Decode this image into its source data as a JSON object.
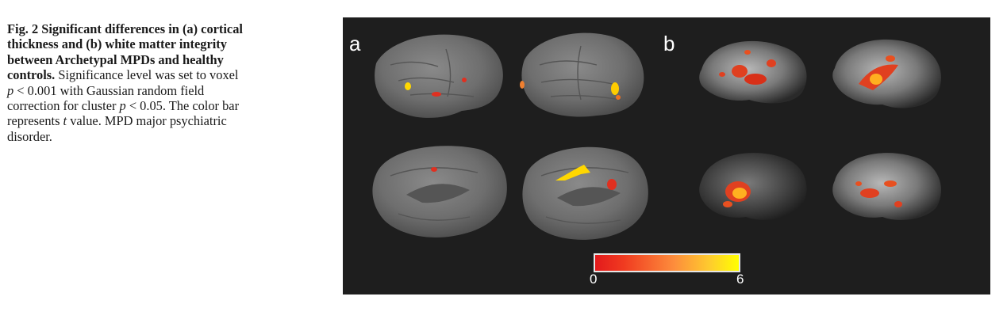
{
  "caption": {
    "bold_text": "Fig. 2 Significant differences in (a) cortical thickness and (b) white matter integrity between Archetypal MPDs and healthy controls.",
    "part1": " Significance level was set to voxel ",
    "p_symbol_1": "p",
    "part2": " < 0.001 with Gaussian random field correction for cluster ",
    "p_symbol_2": "p",
    "part3": " < 0.05. The color bar represents ",
    "t_symbol": "t",
    "part4": " value. MPD major psychiatric disorder."
  },
  "figure": {
    "panel_a_label": "a",
    "panel_b_label": "b",
    "colorbar": {
      "min_label": "0",
      "max_label": "6",
      "colors": [
        "#e31a1c",
        "#fd8d3c",
        "#ffff00"
      ]
    }
  }
}
